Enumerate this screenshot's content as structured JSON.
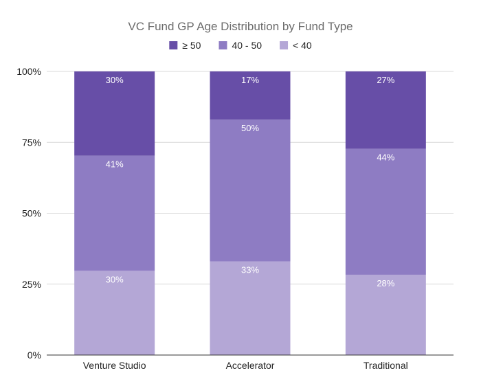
{
  "chart_data": {
    "type": "bar",
    "stacked": true,
    "percent_stacked": true,
    "title": "VC Fund GP Age Distribution by Fund Type",
    "categories": [
      "Venture Studio",
      "Accelerator",
      "Traditional"
    ],
    "series": [
      {
        "name": "< 40",
        "color": "#b4a7d6",
        "values": [
          30,
          33,
          28
        ],
        "labels": [
          "30%",
          "33%",
          "28%"
        ]
      },
      {
        "name": "40 - 50",
        "color": "#8e7cc3",
        "values": [
          41,
          50,
          44
        ],
        "labels": [
          "41%",
          "50%",
          "44%"
        ]
      },
      {
        "name": "≥ 50",
        "color": "#674ea7",
        "values": [
          30,
          17,
          27
        ],
        "labels": [
          "30%",
          "17%",
          "27%"
        ]
      }
    ],
    "legend_order": [
      "≥ 50",
      "40 - 50",
      "< 40"
    ],
    "legend_position": "top",
    "yticks": [
      "0%",
      "25%",
      "50%",
      "75%",
      "100%"
    ],
    "ylim": [
      0,
      100
    ],
    "grid": true
  }
}
